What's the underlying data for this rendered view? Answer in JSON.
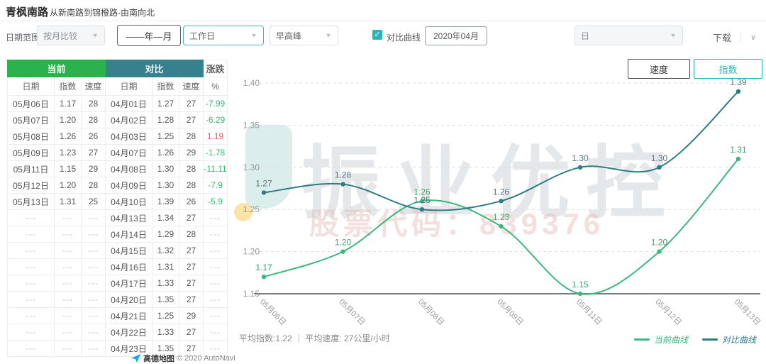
{
  "header": {
    "title": "青枫南路",
    "subtitle": "从新南路到锦橙路-由南向北"
  },
  "toolbar": {
    "date_range_label": "日期范围",
    "compare_mode": {
      "value": "按月比较"
    },
    "period_button": "——年—月",
    "day_type": {
      "value": "工作日"
    },
    "peak": {
      "value": "早高峰"
    },
    "compare_curve": {
      "label": "对比曲线",
      "checked": true,
      "check_glyph": "✓"
    },
    "compare_month": "2020年04月",
    "granularity": {
      "value": "日"
    },
    "download_label": "下载",
    "chevron_glyph": "∨"
  },
  "table": {
    "group_headers": {
      "current": "当前",
      "compare": "对比",
      "change": "涨跌"
    },
    "columns": [
      "日期",
      "指数",
      "速度",
      "日期",
      "指数",
      "速度",
      "%"
    ],
    "rows": [
      {
        "cells": [
          "05月06日",
          "1.17",
          "28",
          "04月01日",
          "1.27",
          "27",
          "-7.99"
        ],
        "change": "down"
      },
      {
        "cells": [
          "05月07日",
          "1.20",
          "28",
          "04月02日",
          "1.28",
          "27",
          "-6.29"
        ],
        "change": "down"
      },
      {
        "cells": [
          "05月08日",
          "1.26",
          "26",
          "04月03日",
          "1.25",
          "28",
          "1.19"
        ],
        "change": "up"
      },
      {
        "cells": [
          "05月09日",
          "1.23",
          "27",
          "04月07日",
          "1.26",
          "29",
          "-1.78"
        ],
        "change": "down"
      },
      {
        "cells": [
          "05月11日",
          "1.15",
          "29",
          "04月08日",
          "1.30",
          "28",
          "-11.11"
        ],
        "change": "down"
      },
      {
        "cells": [
          "05月12日",
          "1.20",
          "28",
          "04月09日",
          "1.30",
          "28",
          "-7.9"
        ],
        "change": "down"
      },
      {
        "cells": [
          "05月13日",
          "1.31",
          "25",
          "04月10日",
          "1.39",
          "26",
          "-5.9"
        ],
        "change": "down"
      },
      {
        "cells": [
          "---",
          "---",
          "---",
          "04月13日",
          "1.34",
          "27",
          "---"
        ],
        "change": "none"
      },
      {
        "cells": [
          "---",
          "---",
          "---",
          "04月14日",
          "1.29",
          "28",
          "---"
        ],
        "change": "none"
      },
      {
        "cells": [
          "---",
          "---",
          "---",
          "04月15日",
          "1.32",
          "27",
          "---"
        ],
        "change": "none"
      },
      {
        "cells": [
          "---",
          "---",
          "---",
          "04月16日",
          "1.31",
          "27",
          "---"
        ],
        "change": "none"
      },
      {
        "cells": [
          "---",
          "---",
          "---",
          "04月17日",
          "1.33",
          "27",
          "---"
        ],
        "change": "none"
      },
      {
        "cells": [
          "---",
          "---",
          "---",
          "04月20日",
          "1.35",
          "27",
          "---"
        ],
        "change": "none"
      },
      {
        "cells": [
          "---",
          "---",
          "---",
          "04月21日",
          "1.25",
          "29",
          "---"
        ],
        "change": "none"
      },
      {
        "cells": [
          "---",
          "---",
          "---",
          "04月22日",
          "1.33",
          "27",
          "---"
        ],
        "change": "none"
      },
      {
        "cells": [
          "---",
          "---",
          "---",
          "04月23日",
          "1.35",
          "27",
          "---"
        ],
        "change": "none"
      }
    ]
  },
  "chart_buttons": {
    "speed": "速度",
    "index": "指数",
    "selected": "指数"
  },
  "chart_data": {
    "type": "line",
    "title": "",
    "categories": [
      "05月06日",
      "05月07日",
      "05月08日",
      "05月09日",
      "05月11日",
      "05月12日",
      "05月13日"
    ],
    "series": [
      {
        "name": "当前曲线",
        "color": "#3bb87d",
        "label_color": "#3aa76d",
        "values": [
          1.17,
          1.2,
          1.26,
          1.23,
          1.15,
          1.2,
          1.31
        ]
      },
      {
        "name": "对比曲线",
        "color": "#2e7d84",
        "label_color": "#5b7682",
        "values": [
          1.27,
          1.28,
          1.25,
          1.26,
          1.3,
          1.3,
          1.39
        ]
      }
    ],
    "xlabel": "",
    "ylabel": "",
    "ylim": [
      1.15,
      1.4
    ],
    "ytick": 0.05,
    "grid": "dashed-horizontal",
    "legend_position": "bottom-right",
    "smooth": true,
    "stats": "平均指数:1.22 ｜ 平均速度: 27公里/小时"
  },
  "watermark": {
    "line1": "振业优控",
    "line2": "股票代码：839376"
  },
  "map_attribution": {
    "brand": "高德地图",
    "copyright": "© 2020 AutoNavi"
  }
}
